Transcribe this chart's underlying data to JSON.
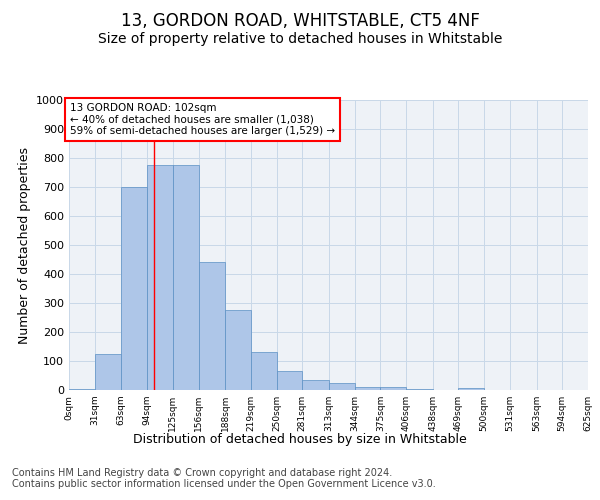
{
  "title": "13, GORDON ROAD, WHITSTABLE, CT5 4NF",
  "subtitle": "Size of property relative to detached houses in Whitstable",
  "xlabel": "Distribution of detached houses by size in Whitstable",
  "ylabel": "Number of detached properties",
  "bar_edges": [
    0,
    31,
    63,
    94,
    125,
    156,
    188,
    219,
    250,
    281,
    313,
    344,
    375,
    406,
    438,
    469,
    500,
    531,
    563,
    594,
    625
  ],
  "bar_heights": [
    5,
    125,
    700,
    775,
    775,
    440,
    275,
    130,
    65,
    35,
    25,
    12,
    12,
    5,
    0,
    8,
    0,
    0,
    0,
    0
  ],
  "bar_color": "#aec6e8",
  "bar_edge_color": "#5a8fc3",
  "grid_color": "#c8d8e8",
  "bg_color": "#eef2f7",
  "vline_x": 102,
  "vline_color": "red",
  "annotation_text": "13 GORDON ROAD: 102sqm\n← 40% of detached houses are smaller (1,038)\n59% of semi-detached houses are larger (1,529) →",
  "ylim": [
    0,
    1000
  ],
  "tick_labels": [
    "0sqm",
    "31sqm",
    "63sqm",
    "94sqm",
    "125sqm",
    "156sqm",
    "188sqm",
    "219sqm",
    "250sqm",
    "281sqm",
    "313sqm",
    "344sqm",
    "375sqm",
    "406sqm",
    "438sqm",
    "469sqm",
    "500sqm",
    "531sqm",
    "563sqm",
    "594sqm",
    "625sqm"
  ],
  "footer_text": "Contains HM Land Registry data © Crown copyright and database right 2024.\nContains public sector information licensed under the Open Government Licence v3.0.",
  "title_fontsize": 12,
  "subtitle_fontsize": 10,
  "xlabel_fontsize": 9,
  "ylabel_fontsize": 9,
  "footer_fontsize": 7
}
